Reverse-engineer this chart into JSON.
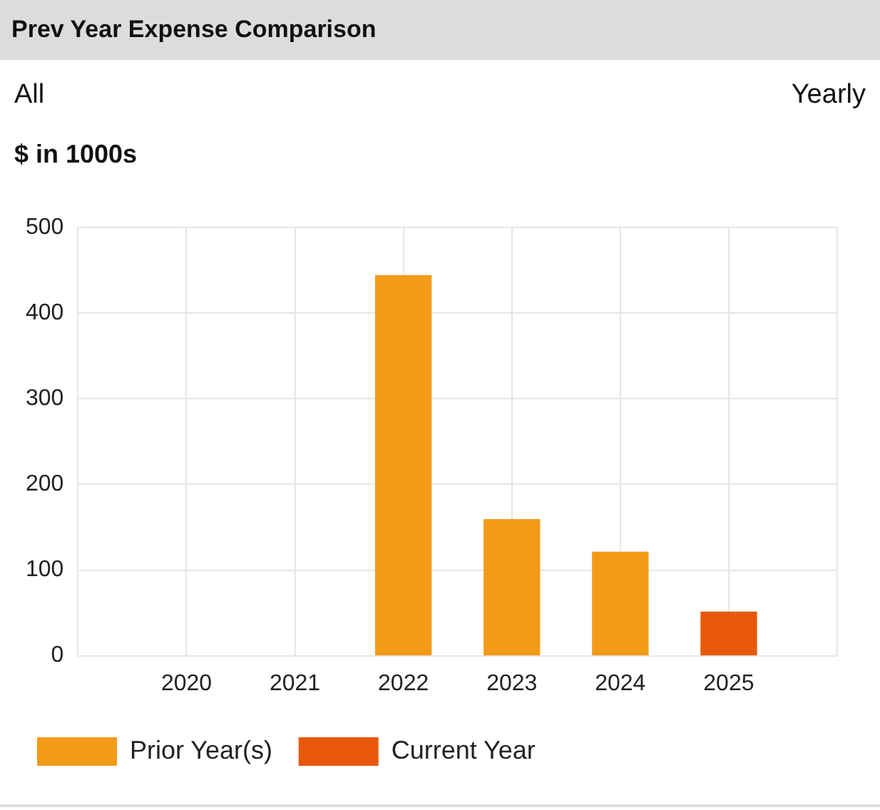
{
  "chart_data": {
    "type": "bar",
    "title": "Prev Year Expense Comparison",
    "ylabel": "$ in 1000s",
    "annotations": [
      "All",
      "Yearly"
    ],
    "categories": [
      "2020",
      "2021",
      "2022",
      "2023",
      "2024",
      "2025"
    ],
    "series": [
      {
        "name": "Prior Year(s)",
        "color": "#f39a17",
        "values": [
          null,
          null,
          444,
          159,
          121,
          null
        ]
      },
      {
        "name": "Current Year",
        "color": "#e8580c",
        "values": [
          null,
          null,
          null,
          null,
          null,
          51
        ]
      }
    ],
    "stacked": true,
    "ylim": [
      0,
      500
    ],
    "yticks": [
      0,
      100,
      200,
      300,
      400,
      500
    ],
    "grid": true,
    "legend": "bottom"
  }
}
